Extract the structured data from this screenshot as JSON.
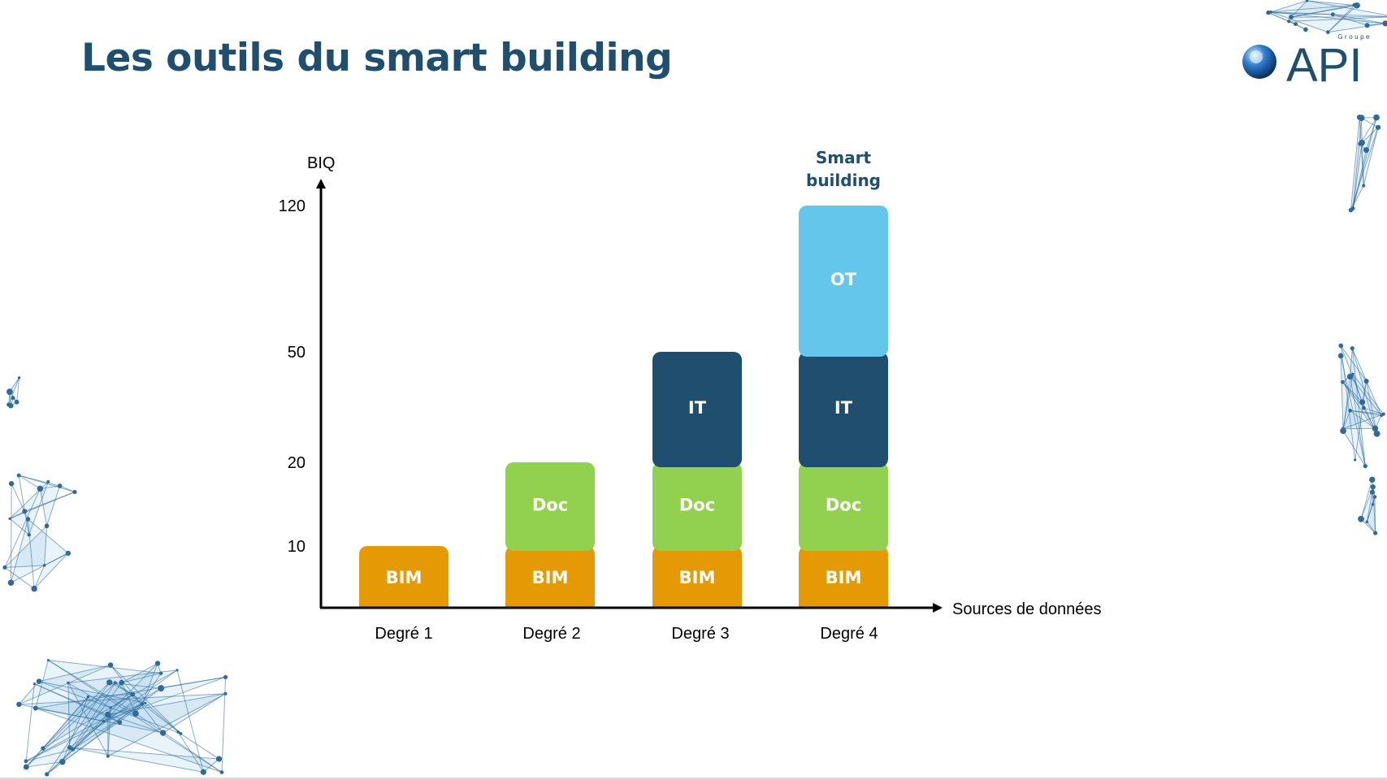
{
  "slide": {
    "title": "Les outils du smart building"
  },
  "logo": {
    "brand": "API",
    "tagline": "Groupe"
  },
  "colors": {
    "title": "#1f4e6e",
    "BIM": "#e59a05",
    "Doc": "#92d050",
    "IT": "#1f4e6e",
    "OT": "#63c6ea",
    "axis": "#000000",
    "network": "#2f6a9a"
  },
  "chart_data": {
    "type": "bar",
    "stacked": true,
    "title": "",
    "xlabel": "Sources de données",
    "ylabel": "BIQ",
    "categories": [
      "Degré 1",
      "Degré 2",
      "Degré 3",
      "Degré 4"
    ],
    "y_ticks": [
      10,
      20,
      50,
      120
    ],
    "y_scale": "non-linear (ticks at 10, 20, 50, 120)",
    "series": [
      {
        "name": "BIM",
        "values": [
          10,
          10,
          10,
          10
        ]
      },
      {
        "name": "Doc",
        "values": [
          0,
          10,
          10,
          10
        ]
      },
      {
        "name": "IT",
        "values": [
          0,
          0,
          30,
          30
        ]
      },
      {
        "name": "OT",
        "values": [
          0,
          0,
          0,
          70
        ]
      }
    ],
    "annotations": [
      {
        "category": "Degré 4",
        "text_lines": [
          "Smart",
          "building"
        ]
      }
    ],
    "grid": false,
    "legend": "none"
  }
}
